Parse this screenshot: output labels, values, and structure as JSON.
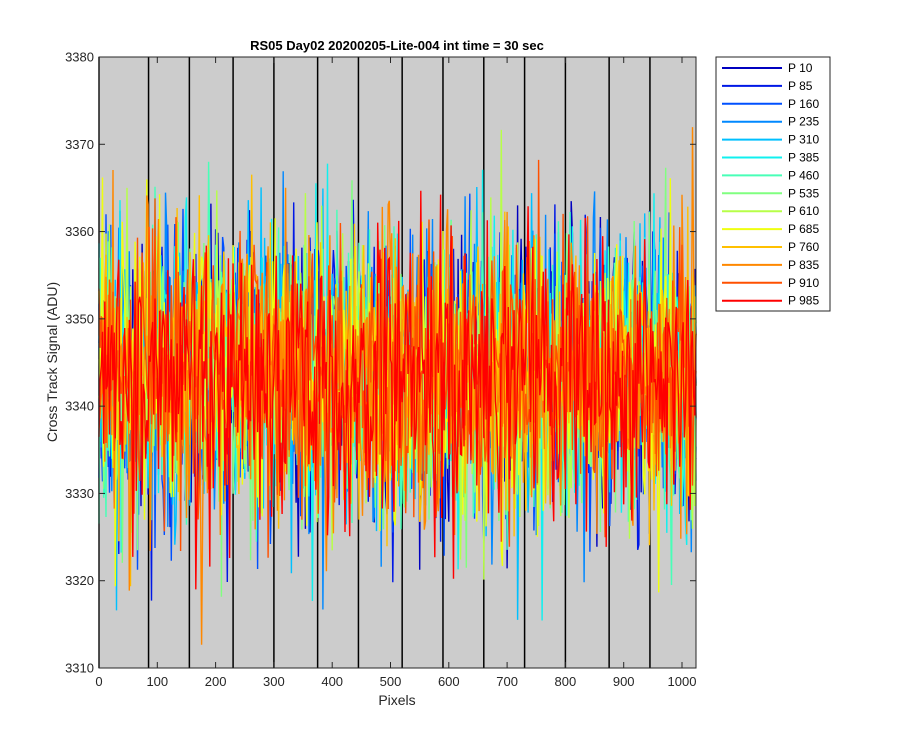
{
  "chart_data": {
    "type": "line",
    "title": "RS05 Day02 20200205-Lite-004 int time = 30 sec",
    "xlabel": "Pixels",
    "ylabel": "Cross Track Signal (ADU)",
    "xlim": [
      0,
      1024
    ],
    "ylim": [
      3310,
      3380
    ],
    "xticks": [
      0,
      100,
      200,
      300,
      400,
      500,
      600,
      700,
      800,
      900,
      1000
    ],
    "yticks": [
      3310,
      3320,
      3330,
      3340,
      3350,
      3360,
      3370,
      3380
    ],
    "vertical_markers": [
      0,
      85,
      155,
      230,
      300,
      375,
      445,
      520,
      590,
      660,
      730,
      800,
      875,
      945
    ],
    "background": "#cccccc",
    "grid": false,
    "legend_position": "outside-top-right",
    "noise_model": {
      "mean": 3343.5,
      "approx_range": [
        3310,
        3379
      ]
    },
    "series": [
      {
        "name": "P 10",
        "color": "#0000bf"
      },
      {
        "name": "P 85",
        "color": "#0018e6"
      },
      {
        "name": "P 160",
        "color": "#0050ff"
      },
      {
        "name": "P 235",
        "color": "#0088ff"
      },
      {
        "name": "P 310",
        "color": "#00c0ff"
      },
      {
        "name": "P 385",
        "color": "#10f0ef"
      },
      {
        "name": "P 460",
        "color": "#48ffb7"
      },
      {
        "name": "P 535",
        "color": "#80ff80"
      },
      {
        "name": "P 610",
        "color": "#b7ff48"
      },
      {
        "name": "P 685",
        "color": "#efff10"
      },
      {
        "name": "P 760",
        "color": "#ffc000"
      },
      {
        "name": "P 835",
        "color": "#ff8800"
      },
      {
        "name": "P 910",
        "color": "#ff5000"
      },
      {
        "name": "P 985",
        "color": "#ff0000"
      }
    ]
  }
}
